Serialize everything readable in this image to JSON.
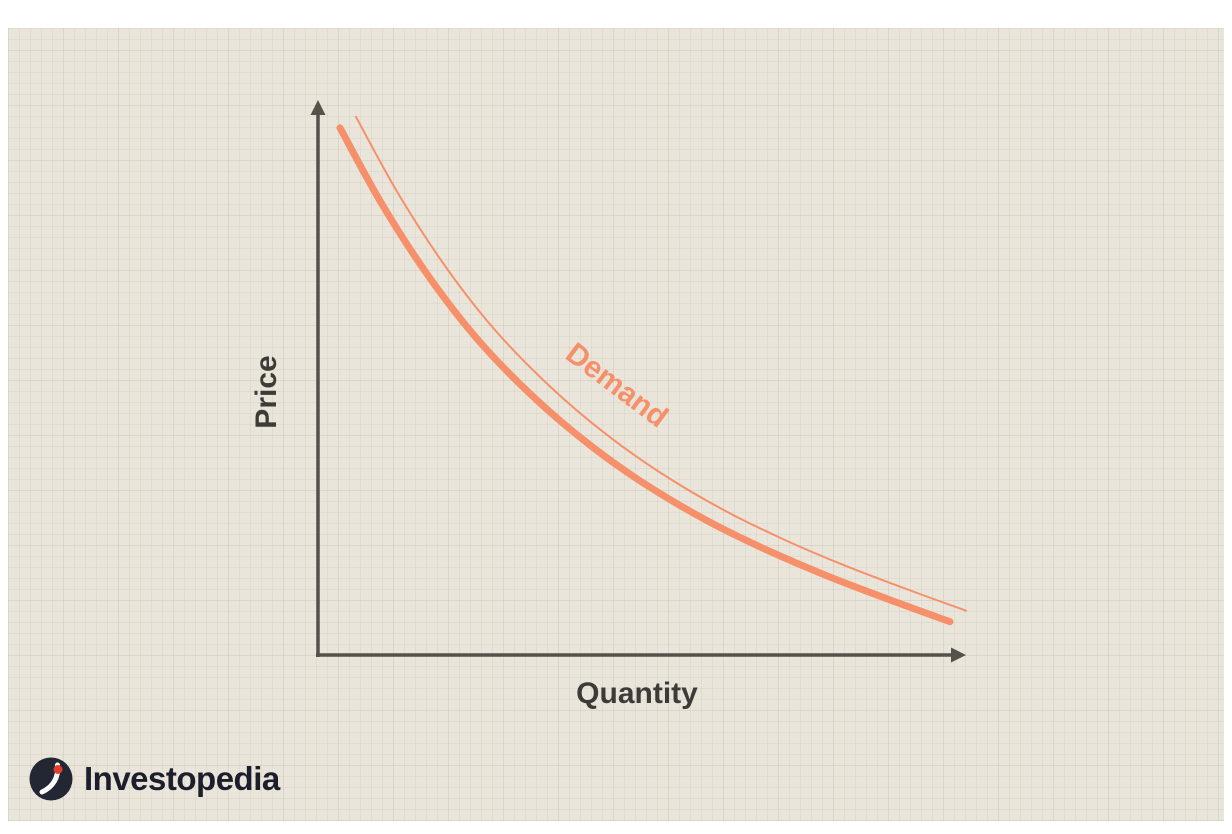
{
  "page": {
    "background": "#ffffff"
  },
  "canvas": {
    "background": "#eae5db",
    "grid_color": "rgba(150,140,115,0.10)"
  },
  "chart_data": {
    "type": "line",
    "title": "",
    "xlabel": "Quantity",
    "ylabel": "Price",
    "axis_color": "#55514b",
    "label_color": "#3d3b38",
    "grid": "faint graph-paper texture, no tick marks, no numeric scale",
    "legend": "none",
    "xlim": [
      0,
      1
    ],
    "ylim": [
      0,
      1
    ],
    "series": [
      {
        "name": "Demand",
        "color": "#f5906a",
        "stroke_width": 7,
        "style": "hand-drawn double stroke (thick line with thin echo line above it)",
        "x": [
          0,
          0.07,
          0.15,
          0.23,
          0.32,
          0.41,
          0.5,
          0.6,
          0.7,
          0.8,
          0.9,
          1.0
        ],
        "y": [
          0.95,
          0.81,
          0.675,
          0.563,
          0.462,
          0.378,
          0.308,
          0.243,
          0.189,
          0.142,
          0.1,
          0.06
        ]
      }
    ],
    "annotations": [
      {
        "text": "Demand",
        "color": "#f5906a",
        "rotation_deg": 37,
        "position": "written along the middle of the curve"
      }
    ]
  },
  "branding": {
    "name": "Investopedia",
    "text_color": "#1d1e2c",
    "icon": "investopedia-i-icon",
    "icon_bg": "#232734",
    "icon_accent": "#e23d2e"
  }
}
